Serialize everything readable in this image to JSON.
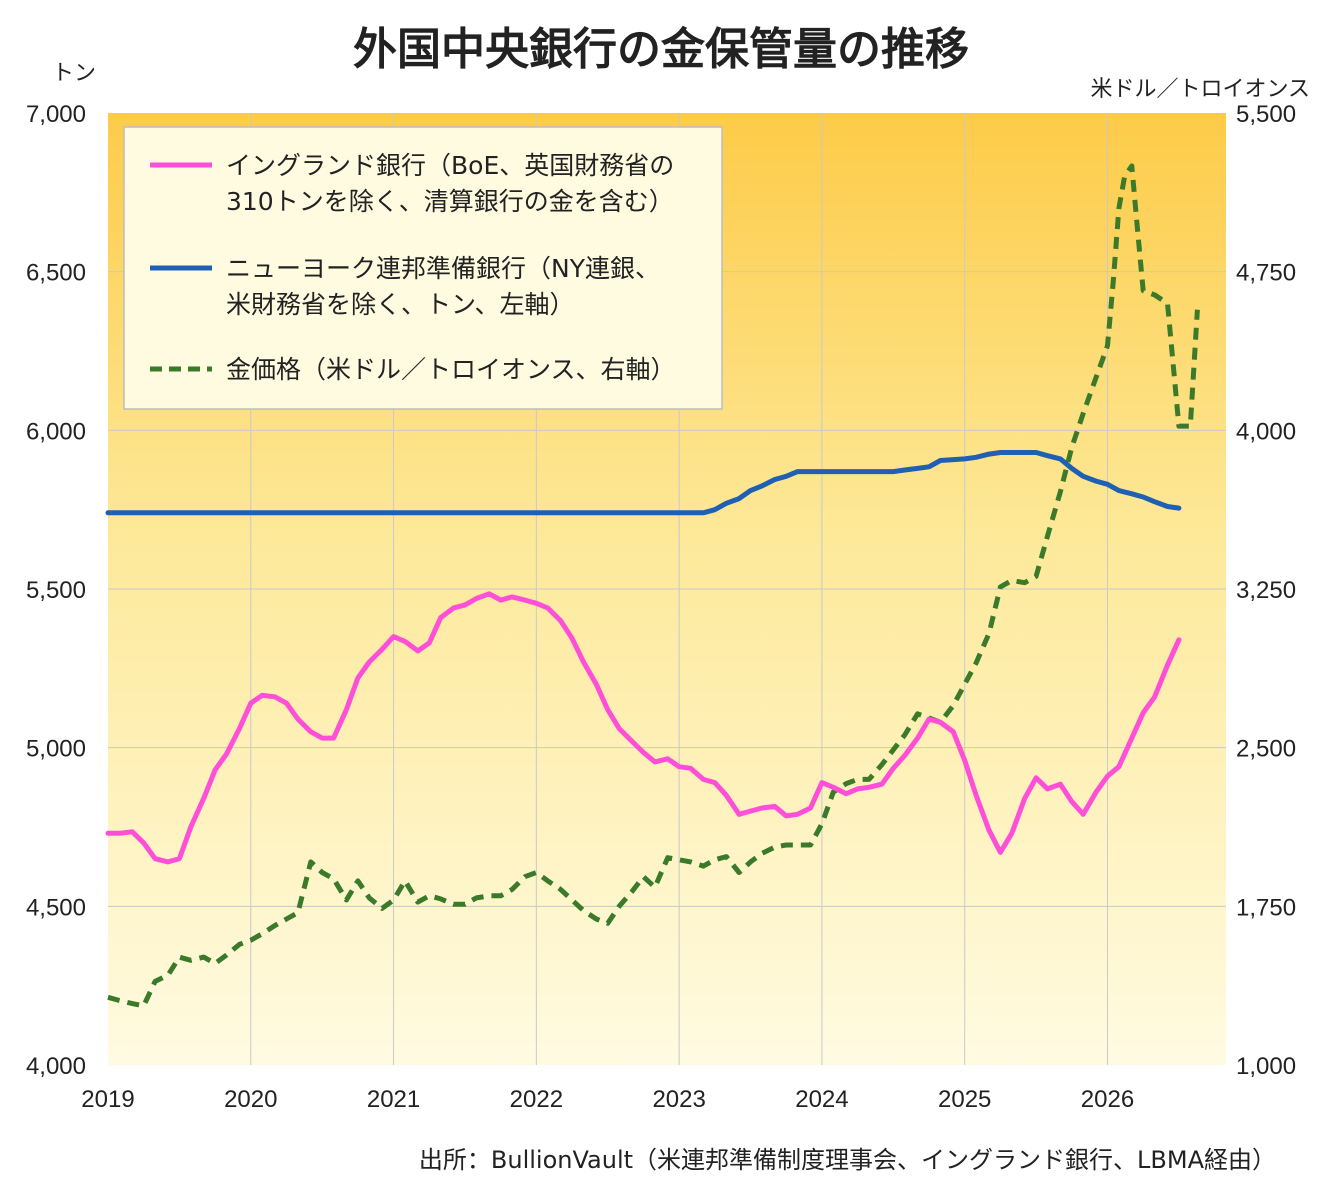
{
  "chart_data": {
    "type": "line",
    "title": "外国中央銀行の金保管量の推移",
    "ylabel_left": "トン",
    "ylabel_right": "米ドル／トロイオンス",
    "source": "出所：BullionVault（米連邦準備制度理事会、イングランド銀行、LBMA経由）",
    "x_ticks": [
      "2019",
      "2020",
      "2021",
      "2022",
      "2023",
      "2024",
      "2025",
      "2026"
    ],
    "y_left_ticks": [
      "4,000",
      "4,500",
      "5,000",
      "5,500",
      "6,000",
      "6,500",
      "7,000"
    ],
    "y_right_ticks": [
      "1,000",
      "1,750",
      "2,500",
      "3,250",
      "4,000",
      "4,750",
      "5,500"
    ],
    "xlim": [
      2019.0,
      2026.83
    ],
    "ylim_left": [
      4000,
      7000
    ],
    "ylim_right": [
      1000,
      5500
    ],
    "grid": true,
    "legend_position": "top-left",
    "series": [
      {
        "name": "イングランド銀行（BoE、英国財務省の",
        "name_line2": "310トンを除く、清算銀行の金を含む）",
        "axis": "left",
        "color": "#ff4fd8",
        "dash": "solid",
        "points": [
          [
            2019.0,
            4730
          ],
          [
            2019.08,
            4730
          ],
          [
            2019.17,
            4735
          ],
          [
            2019.25,
            4700
          ],
          [
            2019.33,
            4650
          ],
          [
            2019.42,
            4640
          ],
          [
            2019.5,
            4650
          ],
          [
            2019.58,
            4750
          ],
          [
            2019.67,
            4840
          ],
          [
            2019.75,
            4930
          ],
          [
            2019.83,
            4980
          ],
          [
            2019.92,
            5060
          ],
          [
            2020.0,
            5140
          ],
          [
            2020.08,
            5165
          ],
          [
            2020.17,
            5160
          ],
          [
            2020.25,
            5140
          ],
          [
            2020.33,
            5090
          ],
          [
            2020.42,
            5050
          ],
          [
            2020.5,
            5030
          ],
          [
            2020.58,
            5030
          ],
          [
            2020.67,
            5120
          ],
          [
            2020.75,
            5220
          ],
          [
            2020.83,
            5270
          ],
          [
            2020.92,
            5310
          ],
          [
            2021.0,
            5350
          ],
          [
            2021.08,
            5335
          ],
          [
            2021.17,
            5305
          ],
          [
            2021.25,
            5330
          ],
          [
            2021.33,
            5410
          ],
          [
            2021.42,
            5440
          ],
          [
            2021.5,
            5450
          ],
          [
            2021.58,
            5470
          ],
          [
            2021.67,
            5485
          ],
          [
            2021.75,
            5465
          ],
          [
            2021.83,
            5475
          ],
          [
            2021.92,
            5465
          ],
          [
            2022.0,
            5455
          ],
          [
            2022.08,
            5440
          ],
          [
            2022.17,
            5400
          ],
          [
            2022.25,
            5345
          ],
          [
            2022.33,
            5270
          ],
          [
            2022.42,
            5200
          ],
          [
            2022.5,
            5120
          ],
          [
            2022.58,
            5060
          ],
          [
            2022.67,
            5020
          ],
          [
            2022.75,
            4985
          ],
          [
            2022.83,
            4955
          ],
          [
            2022.92,
            4965
          ],
          [
            2023.0,
            4940
          ],
          [
            2023.08,
            4935
          ],
          [
            2023.17,
            4900
          ],
          [
            2023.25,
            4890
          ],
          [
            2023.33,
            4850
          ],
          [
            2023.42,
            4790
          ],
          [
            2023.5,
            4800
          ],
          [
            2023.58,
            4810
          ],
          [
            2023.67,
            4815
          ],
          [
            2023.75,
            4785
          ],
          [
            2023.83,
            4790
          ],
          [
            2023.92,
            4810
          ],
          [
            2024.0,
            4890
          ],
          [
            2024.08,
            4875
          ],
          [
            2024.17,
            4855
          ],
          [
            2024.25,
            4870
          ],
          [
            2024.33,
            4875
          ],
          [
            2024.42,
            4885
          ],
          [
            2024.5,
            4935
          ],
          [
            2024.58,
            4975
          ],
          [
            2024.67,
            5030
          ],
          [
            2024.75,
            5090
          ],
          [
            2024.83,
            5080
          ],
          [
            2024.92,
            5050
          ],
          [
            2025.0,
            4960
          ],
          [
            2025.08,
            4850
          ],
          [
            2025.17,
            4740
          ],
          [
            2025.25,
            4670
          ],
          [
            2025.33,
            4730
          ],
          [
            2025.42,
            4840
          ],
          [
            2025.5,
            4905
          ],
          [
            2025.58,
            4870
          ],
          [
            2025.67,
            4885
          ],
          [
            2025.75,
            4830
          ],
          [
            2025.83,
            4790
          ],
          [
            2025.92,
            4860
          ],
          [
            2026.0,
            4910
          ],
          [
            2026.08,
            4940
          ],
          [
            2026.17,
            5030
          ],
          [
            2026.25,
            5110
          ],
          [
            2026.33,
            5160
          ],
          [
            2026.42,
            5260
          ],
          [
            2026.5,
            5340
          ]
        ]
      },
      {
        "name": "ニューヨーク連邦準備銀行（NY連銀、",
        "name_line2": "米財務省を除く、トン、左軸）",
        "axis": "left",
        "color": "#1f5fb4",
        "dash": "solid",
        "points": [
          [
            2019.0,
            5740
          ],
          [
            2023.17,
            5740
          ],
          [
            2023.25,
            5750
          ],
          [
            2023.33,
            5770
          ],
          [
            2023.42,
            5785
          ],
          [
            2023.5,
            5810
          ],
          [
            2023.58,
            5825
          ],
          [
            2023.67,
            5845
          ],
          [
            2023.75,
            5855
          ],
          [
            2023.83,
            5870
          ],
          [
            2024.0,
            5870
          ],
          [
            2024.25,
            5870
          ],
          [
            2024.5,
            5870
          ],
          [
            2024.58,
            5875
          ],
          [
            2024.67,
            5880
          ],
          [
            2024.75,
            5885
          ],
          [
            2024.83,
            5905
          ],
          [
            2025.0,
            5910
          ],
          [
            2025.08,
            5915
          ],
          [
            2025.17,
            5925
          ],
          [
            2025.25,
            5930
          ],
          [
            2025.42,
            5930
          ],
          [
            2025.5,
            5930
          ],
          [
            2025.58,
            5920
          ],
          [
            2025.67,
            5910
          ],
          [
            2025.75,
            5880
          ],
          [
            2025.83,
            5855
          ],
          [
            2025.92,
            5840
          ],
          [
            2026.0,
            5830
          ],
          [
            2026.08,
            5810
          ],
          [
            2026.17,
            5800
          ],
          [
            2026.25,
            5790
          ],
          [
            2026.33,
            5775
          ],
          [
            2026.42,
            5760
          ],
          [
            2026.5,
            5755
          ]
        ]
      },
      {
        "name": "金価格（米ドル／トロイオンス、右軸）",
        "axis": "right",
        "color": "#3a7a2a",
        "dash": "dashed",
        "points": [
          [
            2019.0,
            1320
          ],
          [
            2019.08,
            1305
          ],
          [
            2019.17,
            1290
          ],
          [
            2019.25,
            1280
          ],
          [
            2019.33,
            1395
          ],
          [
            2019.42,
            1425
          ],
          [
            2019.5,
            1510
          ],
          [
            2019.58,
            1495
          ],
          [
            2019.67,
            1510
          ],
          [
            2019.75,
            1480
          ],
          [
            2019.83,
            1520
          ],
          [
            2019.92,
            1570
          ],
          [
            2020.0,
            1590
          ],
          [
            2020.08,
            1620
          ],
          [
            2020.17,
            1660
          ],
          [
            2020.25,
            1690
          ],
          [
            2020.33,
            1720
          ],
          [
            2020.42,
            1960
          ],
          [
            2020.5,
            1910
          ],
          [
            2020.58,
            1880
          ],
          [
            2020.67,
            1780
          ],
          [
            2020.75,
            1870
          ],
          [
            2020.83,
            1790
          ],
          [
            2020.92,
            1740
          ],
          [
            2021.0,
            1780
          ],
          [
            2021.08,
            1870
          ],
          [
            2021.17,
            1770
          ],
          [
            2021.25,
            1800
          ],
          [
            2021.33,
            1785
          ],
          [
            2021.42,
            1760
          ],
          [
            2021.5,
            1760
          ],
          [
            2021.58,
            1790
          ],
          [
            2021.67,
            1800
          ],
          [
            2021.75,
            1800
          ],
          [
            2021.83,
            1830
          ],
          [
            2021.92,
            1890
          ],
          [
            2022.0,
            1910
          ],
          [
            2022.08,
            1870
          ],
          [
            2022.17,
            1830
          ],
          [
            2022.25,
            1780
          ],
          [
            2022.33,
            1730
          ],
          [
            2022.42,
            1690
          ],
          [
            2022.5,
            1670
          ],
          [
            2022.58,
            1750
          ],
          [
            2022.67,
            1820
          ],
          [
            2022.75,
            1890
          ],
          [
            2022.83,
            1840
          ],
          [
            2022.92,
            1980
          ],
          [
            2023.0,
            1970
          ],
          [
            2023.08,
            1960
          ],
          [
            2023.17,
            1940
          ],
          [
            2023.25,
            1970
          ],
          [
            2023.33,
            1985
          ],
          [
            2023.42,
            1910
          ],
          [
            2023.5,
            1960
          ],
          [
            2023.58,
            2000
          ],
          [
            2023.67,
            2030
          ],
          [
            2023.75,
            2040
          ],
          [
            2023.83,
            2040
          ],
          [
            2023.92,
            2040
          ],
          [
            2024.0,
            2140
          ],
          [
            2024.08,
            2290
          ],
          [
            2024.17,
            2330
          ],
          [
            2024.25,
            2350
          ],
          [
            2024.33,
            2350
          ],
          [
            2024.42,
            2420
          ],
          [
            2024.5,
            2490
          ],
          [
            2024.58,
            2560
          ],
          [
            2024.67,
            2660
          ],
          [
            2024.75,
            2640
          ],
          [
            2024.83,
            2620
          ],
          [
            2024.92,
            2700
          ],
          [
            2025.0,
            2800
          ],
          [
            2025.08,
            2900
          ],
          [
            2025.17,
            3040
          ],
          [
            2025.25,
            3260
          ],
          [
            2025.33,
            3290
          ],
          [
            2025.42,
            3280
          ],
          [
            2025.5,
            3310
          ],
          [
            2025.58,
            3500
          ],
          [
            2025.67,
            3710
          ],
          [
            2025.75,
            3920
          ],
          [
            2025.83,
            4080
          ],
          [
            2025.92,
            4250
          ],
          [
            2026.0,
            4400
          ],
          [
            2026.04,
            4700
          ],
          [
            2026.08,
            5050
          ],
          [
            2026.12,
            5200
          ],
          [
            2026.17,
            5250
          ],
          [
            2026.21,
            4950
          ],
          [
            2026.25,
            4660
          ],
          [
            2026.33,
            4640
          ],
          [
            2026.42,
            4600
          ],
          [
            2026.5,
            4020
          ],
          [
            2026.58,
            4020
          ],
          [
            2026.63,
            4570
          ]
        ]
      }
    ]
  }
}
